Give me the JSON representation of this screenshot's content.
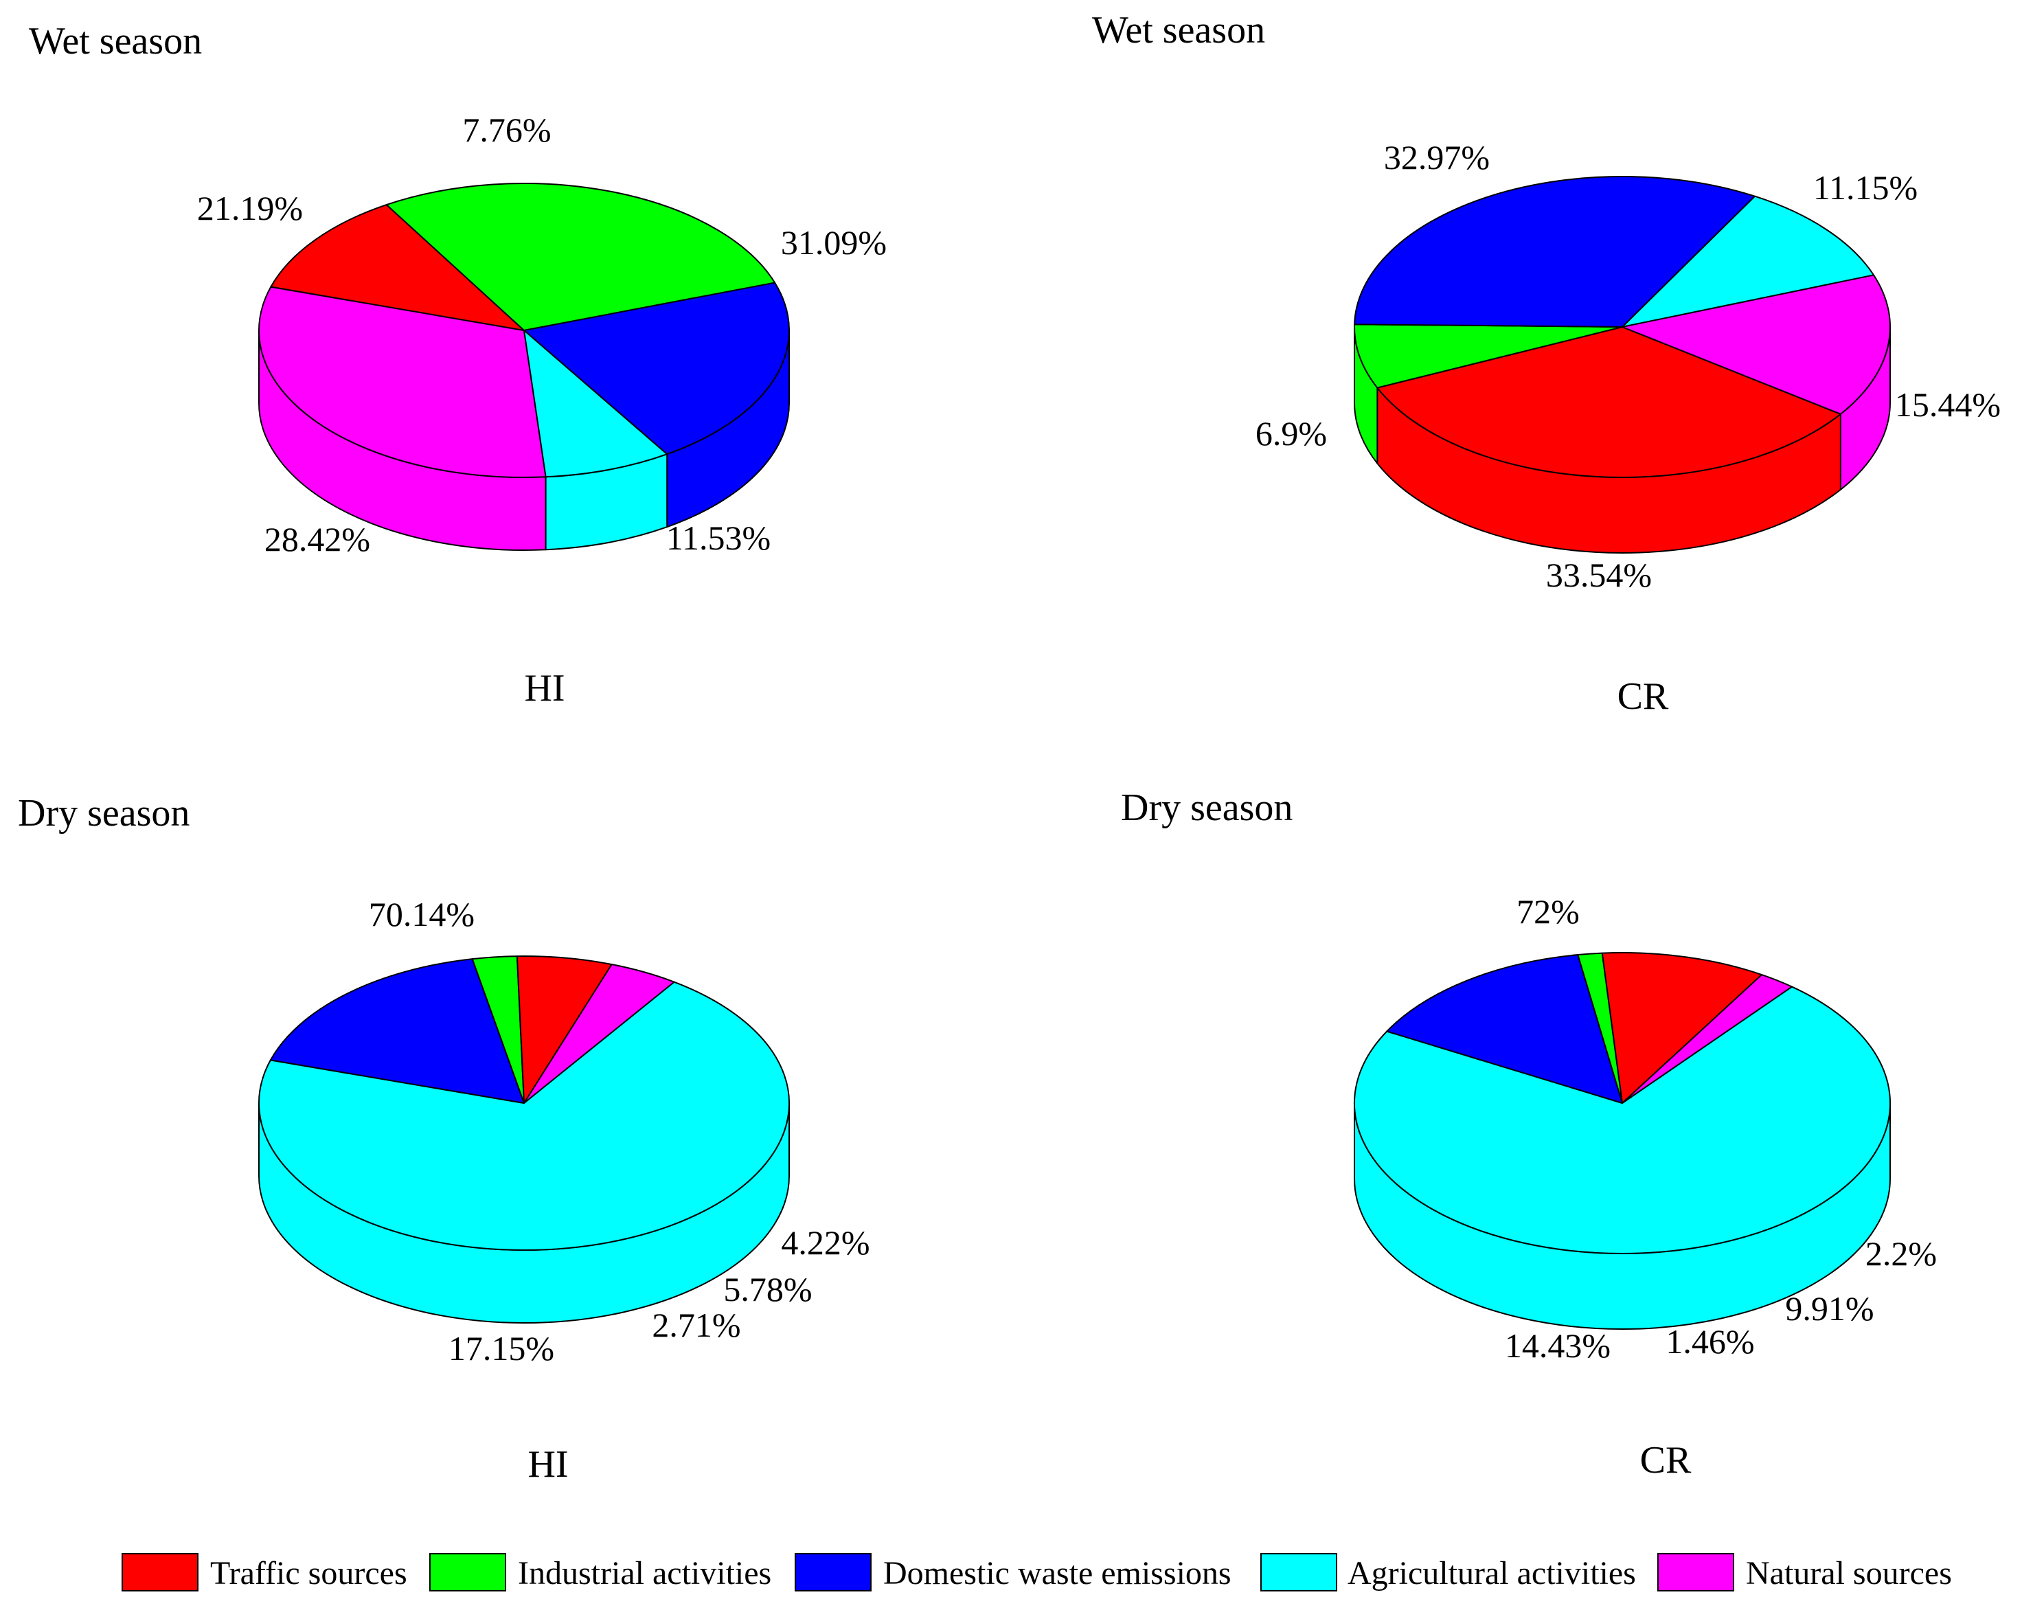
{
  "colors": {
    "Traffic sources": "#ff0000",
    "Industrial activities": "#00ff00",
    "Domestic waste emissions": "#0000ff",
    "Agricultural activities": "#00ffff",
    "Natural sources": "#ff00ff",
    "outline": "#000000"
  },
  "legend": {
    "placement": "bottom",
    "items": [
      "Traffic sources",
      "Industrial activities",
      "Domestic waste emissions",
      "Agricultural activities",
      "Natural sources"
    ]
  },
  "chart_data": [
    {
      "type": "pie",
      "style": "3d",
      "title": "Wet season",
      "caption": "HI",
      "slices": [
        {
          "label": "Traffic sources",
          "value": 11.53,
          "text": "11.53%"
        },
        {
          "label": "Industrial activities",
          "value": 28.42,
          "text": "28.42%"
        },
        {
          "label": "Domestic waste emissions",
          "value": 21.19,
          "text": "21.19%"
        },
        {
          "label": "Agricultural activities",
          "value": 7.76,
          "text": "7.76%"
        },
        {
          "label": "Natural sources",
          "value": 31.09,
          "text": "31.09%"
        }
      ]
    },
    {
      "type": "pie",
      "style": "3d",
      "title": "Wet season",
      "caption": "CR",
      "slices": [
        {
          "label": "Traffic sources",
          "value": 33.54,
          "text": "33.54%"
        },
        {
          "label": "Industrial activities",
          "value": 6.9,
          "text": "6.9%"
        },
        {
          "label": "Domestic waste emissions",
          "value": 32.97,
          "text": "32.97%"
        },
        {
          "label": "Agricultural activities",
          "value": 11.15,
          "text": "11.15%"
        },
        {
          "label": "Natural sources",
          "value": 15.44,
          "text": "15.44%"
        }
      ]
    },
    {
      "type": "pie",
      "style": "3d",
      "title": "Dry season",
      "caption": "HI",
      "slices": [
        {
          "label": "Traffic sources",
          "value": 5.78,
          "text": "5.78%"
        },
        {
          "label": "Industrial activities",
          "value": 2.71,
          "text": "2.71%"
        },
        {
          "label": "Domestic waste emissions",
          "value": 17.15,
          "text": "17.15%"
        },
        {
          "label": "Agricultural activities",
          "value": 70.14,
          "text": "70.14%"
        },
        {
          "label": "Natural sources",
          "value": 4.22,
          "text": "4.22%"
        }
      ]
    },
    {
      "type": "pie",
      "style": "3d",
      "title": "Dry season",
      "caption": "CR",
      "slices": [
        {
          "label": "Traffic sources",
          "value": 9.91,
          "text": "9.91%"
        },
        {
          "label": "Industrial activities",
          "value": 1.46,
          "text": "1.46%"
        },
        {
          "label": "Domestic waste emissions",
          "value": 14.43,
          "text": "14.43%"
        },
        {
          "label": "Agricultural activities",
          "value": 72,
          "text": "72%"
        },
        {
          "label": "Natural sources",
          "value": 2.2,
          "text": "2.2%"
        }
      ]
    }
  ]
}
